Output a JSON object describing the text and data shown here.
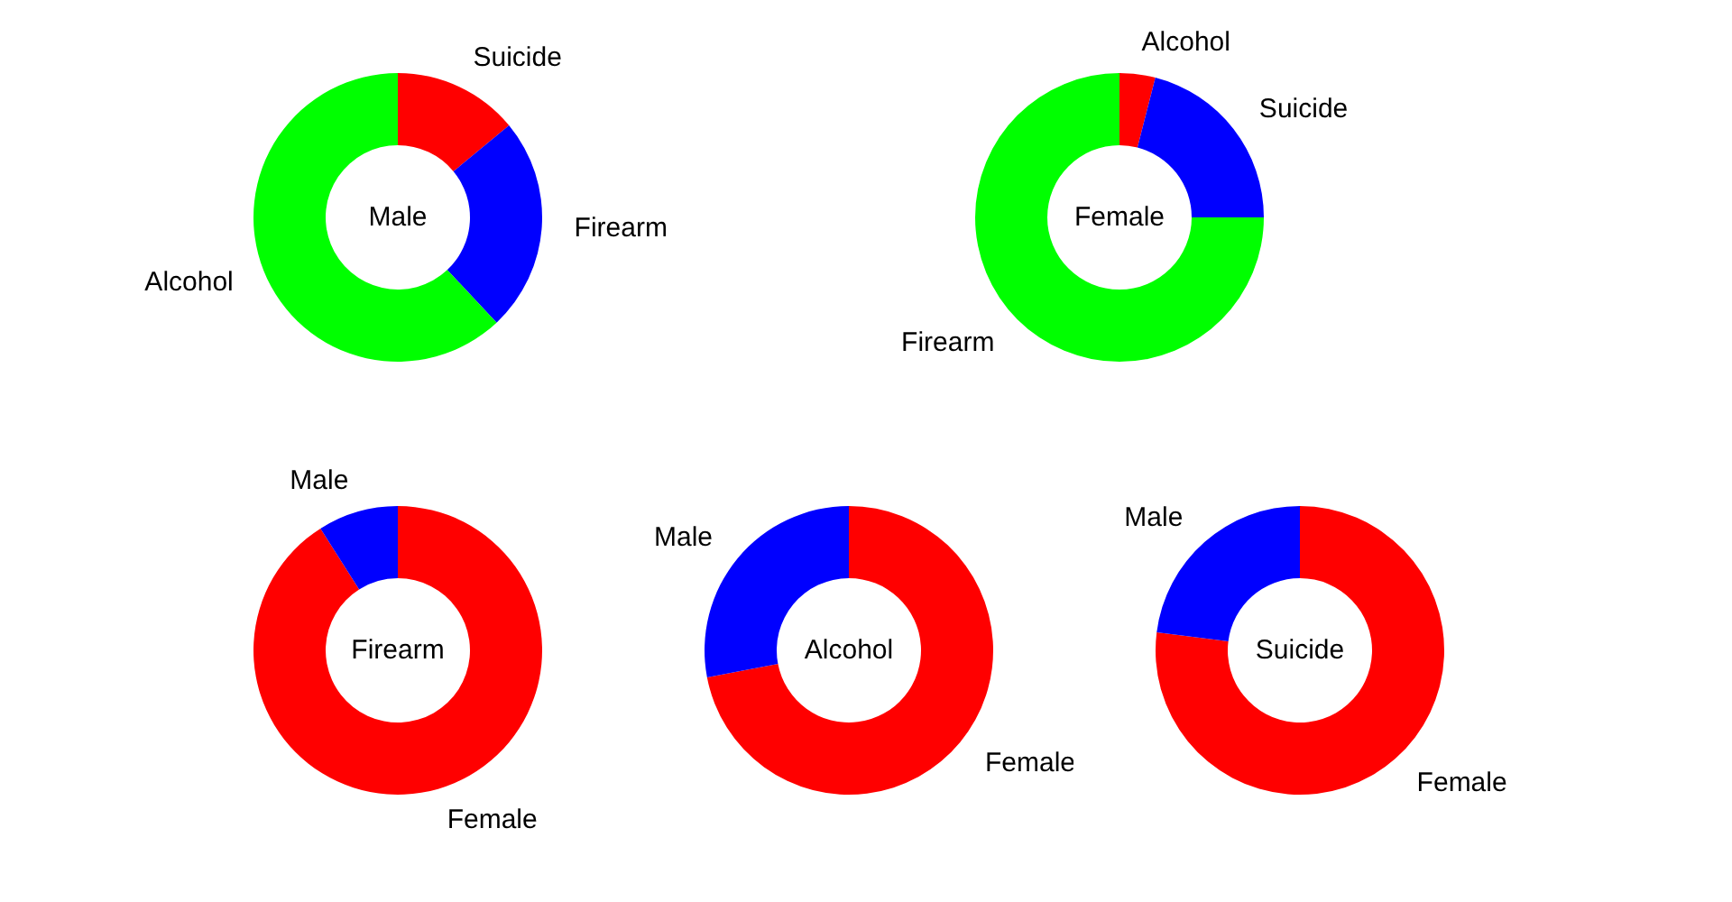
{
  "chart_data": [
    {
      "type": "donut",
      "title": "Male",
      "categories": [
        "Suicide",
        "Firearm",
        "Alcohol"
      ],
      "values": [
        14,
        24,
        62
      ],
      "colors": [
        "#ff0000",
        "#0000ff",
        "#00ff00"
      ]
    },
    {
      "type": "donut",
      "title": "Female",
      "categories": [
        "Alcohol",
        "Suicide",
        "Firearm"
      ],
      "values": [
        4,
        21,
        75
      ],
      "colors": [
        "#ff0000",
        "#0000ff",
        "#00ff00"
      ]
    },
    {
      "type": "donut",
      "title": "Firearm",
      "categories": [
        "Female",
        "Male"
      ],
      "values": [
        91,
        9
      ],
      "colors": [
        "#ff0000",
        "#0000ff"
      ]
    },
    {
      "type": "donut",
      "title": "Alcohol",
      "categories": [
        "Female",
        "Male"
      ],
      "values": [
        72,
        28
      ],
      "colors": [
        "#ff0000",
        "#0000ff"
      ]
    },
    {
      "type": "donut",
      "title": "Suicide",
      "categories": [
        "Female",
        "Male"
      ],
      "values": [
        77,
        23
      ],
      "colors": [
        "#ff0000",
        "#0000ff"
      ]
    }
  ]
}
